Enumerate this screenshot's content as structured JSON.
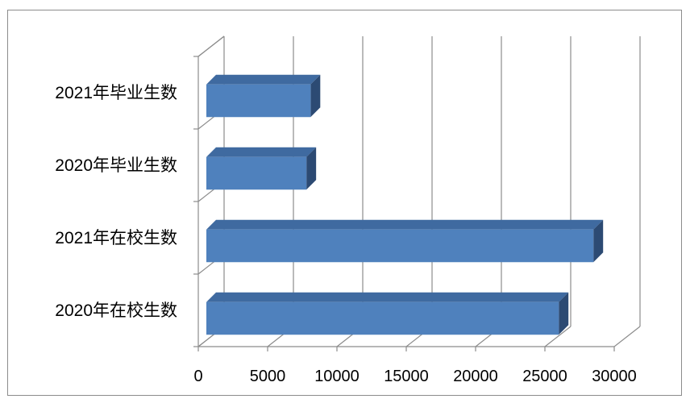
{
  "chart_data": {
    "type": "bar",
    "orientation": "horizontal",
    "style": "3d",
    "categories": [
      "2020年在校生数",
      "2021年在校生数",
      "2020年毕业生数",
      "2021年毕业生数"
    ],
    "values": [
      26000,
      28500,
      7800,
      8100
    ],
    "xlim": [
      0,
      30000
    ],
    "xticks": [
      0,
      5000,
      10000,
      15000,
      20000,
      25000,
      30000
    ],
    "tick_labels": [
      "0",
      "5000",
      "10000",
      "15000",
      "20000",
      "25000",
      "30000"
    ],
    "grid": "vertical",
    "legend": "none",
    "colors": {
      "bar_front": "#4f81bd",
      "bar_top": "#3f6aa0",
      "bar_side": "#2c4a73",
      "grid": "#8c8c8c",
      "frame": "#8c8c8c"
    }
  }
}
